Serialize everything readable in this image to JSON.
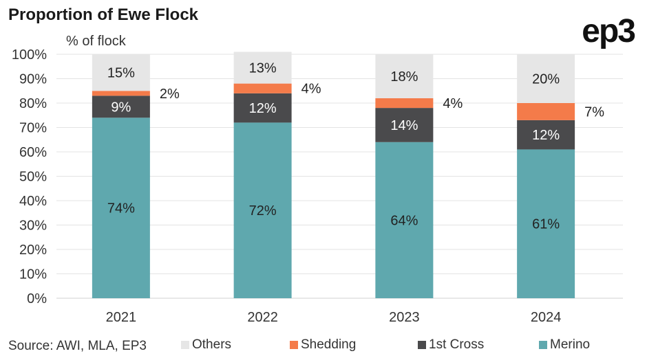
{
  "title": "Proportion of Ewe Flock",
  "logo_text": "ep3",
  "source": "Source: AWI, MLA, EP3",
  "colors": {
    "Others": "#e6e6e6",
    "Shedding": "#f47b4a",
    "1st Cross": "#4a4a4c",
    "Merino": "#5fa8ae",
    "grid": "#e3e3e3",
    "axis": "#d0d0d0"
  },
  "chart_data": {
    "type": "bar",
    "stacked": true,
    "categories": [
      "2021",
      "2022",
      "2023",
      "2024"
    ],
    "series": [
      {
        "name": "Merino",
        "values": [
          74,
          72,
          64,
          61
        ],
        "labels": [
          "74%",
          "72%",
          "64%",
          "61%"
        ]
      },
      {
        "name": "1st Cross",
        "values": [
          9,
          12,
          14,
          12
        ],
        "labels": [
          "9%",
          "12%",
          "14%",
          "12%"
        ]
      },
      {
        "name": "Shedding",
        "values": [
          2,
          4,
          4,
          7
        ],
        "labels": [
          "2%",
          "4%",
          "4%",
          "7%"
        ]
      },
      {
        "name": "Others",
        "values": [
          15,
          13,
          18,
          20
        ],
        "labels": [
          "15%",
          "13%",
          "18%",
          "20%"
        ]
      }
    ],
    "legend_order": [
      "Others",
      "Shedding",
      "1st Cross",
      "Merino"
    ],
    "ylabel": "% of flock",
    "yticks": [
      "0%",
      "10%",
      "20%",
      "30%",
      "40%",
      "50%",
      "60%",
      "70%",
      "80%",
      "90%",
      "100%"
    ],
    "ylim": [
      0,
      100
    ],
    "grid": true,
    "legend_position": "bottom"
  }
}
